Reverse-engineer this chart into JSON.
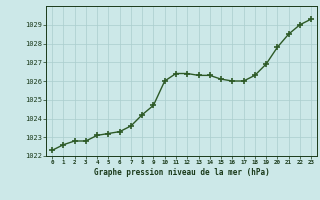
{
  "x": [
    0,
    1,
    2,
    3,
    4,
    5,
    6,
    7,
    8,
    9,
    10,
    11,
    12,
    13,
    14,
    15,
    16,
    17,
    18,
    19,
    20,
    21,
    22,
    23
  ],
  "y": [
    1022.3,
    1022.6,
    1022.8,
    1022.8,
    1023.1,
    1023.2,
    1023.3,
    1023.6,
    1024.2,
    1024.7,
    1026.0,
    1026.4,
    1026.4,
    1026.3,
    1026.3,
    1026.1,
    1026.0,
    1026.0,
    1026.3,
    1026.9,
    1027.8,
    1028.5,
    1029.0,
    1029.3
  ],
  "line_color": "#2d5a27",
  "marker_color": "#2d5a27",
  "bg_color": "#cce8e8",
  "grid_color": "#aacece",
  "xlabel": "Graphe pression niveau de la mer (hPa)",
  "xlabel_color": "#1a3a1a",
  "tick_color": "#1a3a1a",
  "ylim": [
    1022,
    1030
  ],
  "xlim": [
    -0.5,
    23.5
  ],
  "yticks": [
    1022,
    1023,
    1024,
    1025,
    1026,
    1027,
    1028,
    1029
  ],
  "xticks": [
    0,
    1,
    2,
    3,
    4,
    5,
    6,
    7,
    8,
    9,
    10,
    11,
    12,
    13,
    14,
    15,
    16,
    17,
    18,
    19,
    20,
    21,
    22,
    23
  ],
  "marker_size": 4,
  "line_width": 1.0
}
